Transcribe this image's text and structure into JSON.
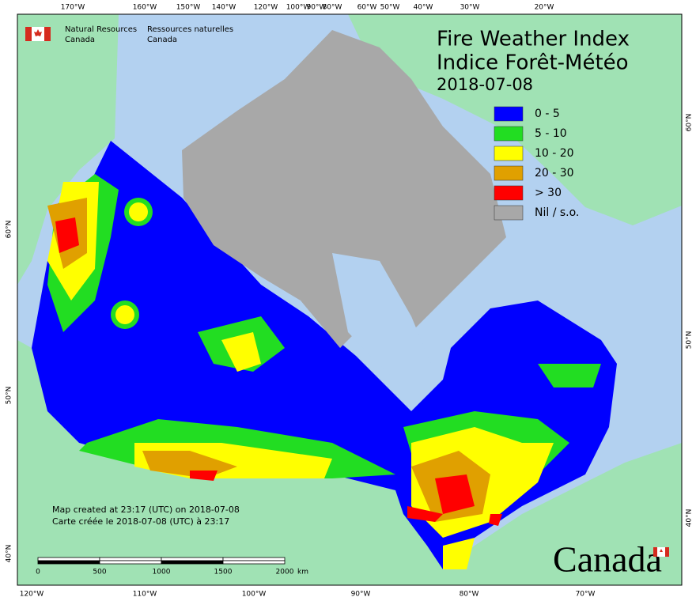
{
  "header": {
    "agency_en": [
      "Natural Resources",
      "Canada"
    ],
    "agency_fr": [
      "Ressources naturelles",
      "Canada"
    ]
  },
  "title": [
    "Fire Weather Index",
    "Indice Forêt-Météo"
  ],
  "date": "2018-07-08",
  "legend": [
    {
      "label": "0 - 5",
      "color": "#0000ff"
    },
    {
      "label": "5 - 10",
      "color": "#22dd22"
    },
    {
      "label": "10 - 20",
      "color": "#ffff00"
    },
    {
      "label": "20 - 30",
      "color": "#e0a000"
    },
    {
      "label": "> 30",
      "color": "#ff0000"
    },
    {
      "label": "Nil / s.o.",
      "color": "#a8a8a8"
    }
  ],
  "graticule": {
    "top": [
      "170°W",
      "160°W",
      "150°W",
      "140°W",
      "120°W",
      "100°W",
      "90°W",
      "80°W",
      "60°W",
      "50°W",
      "40°W",
      "30°W",
      "20°W"
    ],
    "bottom": [
      "120°W",
      "110°W",
      "100°W",
      "90°W",
      "80°W",
      "70°W"
    ],
    "left": [
      "60°N",
      "50°N",
      "40°N"
    ],
    "right": [
      "60°N",
      "50°N",
      "40°N"
    ]
  },
  "credits": [
    "Map created at 23:17 (UTC) on 2018-07-08",
    "Carte créée le 2018-07-08 (UTC) à 23:17"
  ],
  "scale_bar": {
    "ticks": [
      "0",
      "500",
      "1000",
      "1500",
      "2000"
    ],
    "unit": "km"
  },
  "wordmark": "Canada"
}
